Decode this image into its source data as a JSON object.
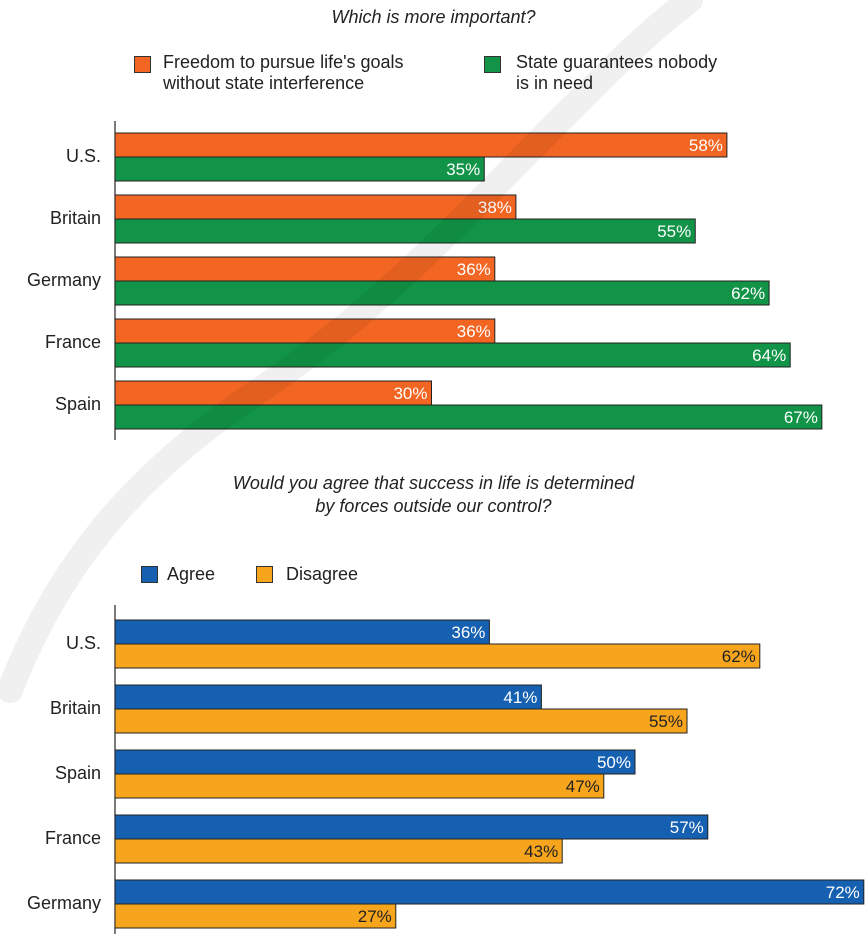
{
  "chart_data": [
    {
      "type": "bar",
      "orientation": "horizontal",
      "title": "Which is more important?",
      "categories": [
        "U.S.",
        "Britain",
        "Germany",
        "France",
        "Spain"
      ],
      "series": [
        {
          "name": "Freedom to pursue life's goals without state interference",
          "color": "#f26522",
          "label_color": "#ffffff",
          "values": [
            58,
            38,
            36,
            36,
            30
          ]
        },
        {
          "name": "State guarantees nobody is in need",
          "color": "#119447",
          "label_color": "#ffffff",
          "values": [
            35,
            55,
            62,
            64,
            67
          ]
        }
      ],
      "legend_lines": [
        [
          "Freedom to pursue life's goals",
          "without state interference"
        ],
        [
          "State guarantees nobody",
          "is in need"
        ]
      ],
      "value_suffix": "%",
      "xlim": [
        0,
        100
      ],
      "grid": false,
      "legend_position": "top"
    },
    {
      "type": "bar",
      "orientation": "horizontal",
      "title": "Would you agree that success in life is determined by forces outside our control?",
      "title_lines": [
        "Would you agree that success in life is determined",
        "by forces outside our control?"
      ],
      "categories": [
        "U.S.",
        "Britain",
        "Spain",
        "France",
        "Germany"
      ],
      "series": [
        {
          "name": "Agree",
          "color": "#1660b2",
          "label_color": "#ffffff",
          "values": [
            36,
            41,
            50,
            57,
            72
          ]
        },
        {
          "name": "Disagree",
          "color": "#f8a51e",
          "label_color": "#222222",
          "values": [
            62,
            55,
            47,
            43,
            27
          ]
        }
      ],
      "value_suffix": "%",
      "xlim": [
        0,
        100
      ],
      "grid": false,
      "legend_position": "top-left"
    }
  ]
}
